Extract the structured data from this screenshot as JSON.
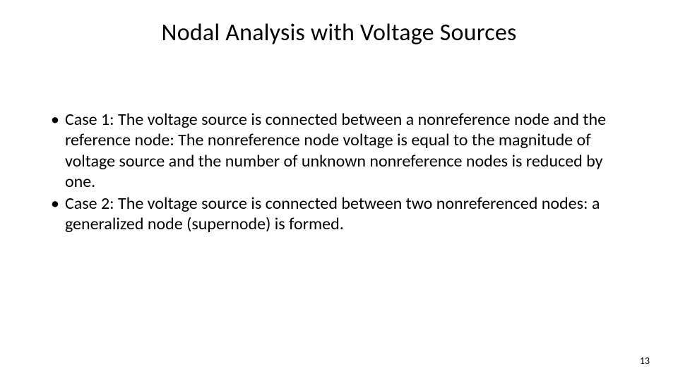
{
  "slide": {
    "title": "Nodal Analysis with Voltage Sources",
    "bullets": [
      "Case 1: The voltage source is connected between a nonreference node and the reference node: The nonreference node voltage is equal to the magnitude of voltage source and the number of unknown nonreference nodes is reduced by one.",
      "Case 2: The voltage source is connected between two nonreferenced nodes: a generalized node (supernode) is formed."
    ],
    "page_number": "13",
    "title_fontsize": 34,
    "body_fontsize": 24,
    "text_color": "#000000",
    "background_color": "#ffffff"
  }
}
